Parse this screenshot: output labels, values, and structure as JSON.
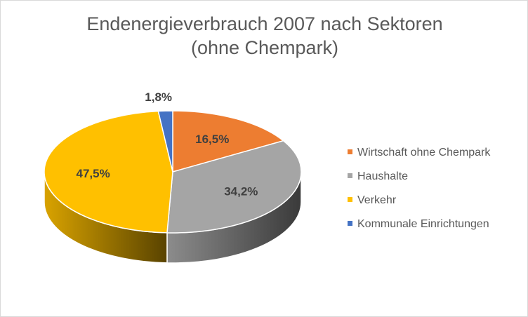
{
  "chart_data": {
    "type": "pie",
    "title_line1": "Endenergieverbrauch 2007 nach Sektoren",
    "title_line2": "(ohne Chempark)",
    "slices": [
      {
        "name": "Wirtschaft ohne Chempark",
        "value": 16.5,
        "label": "16,5%",
        "color": "#ed7d31"
      },
      {
        "name": "Haushalte",
        "value": 34.2,
        "label": "34,2%",
        "color": "#a5a5a5"
      },
      {
        "name": "Verkehr",
        "value": 47.5,
        "label": "47,5%",
        "color": "#ffc000"
      },
      {
        "name": "Kommunale Einrichtungen",
        "value": 1.8,
        "label": "1,8%",
        "color": "#4472c4"
      }
    ],
    "legend_position": "right",
    "style": "3d-pie"
  }
}
